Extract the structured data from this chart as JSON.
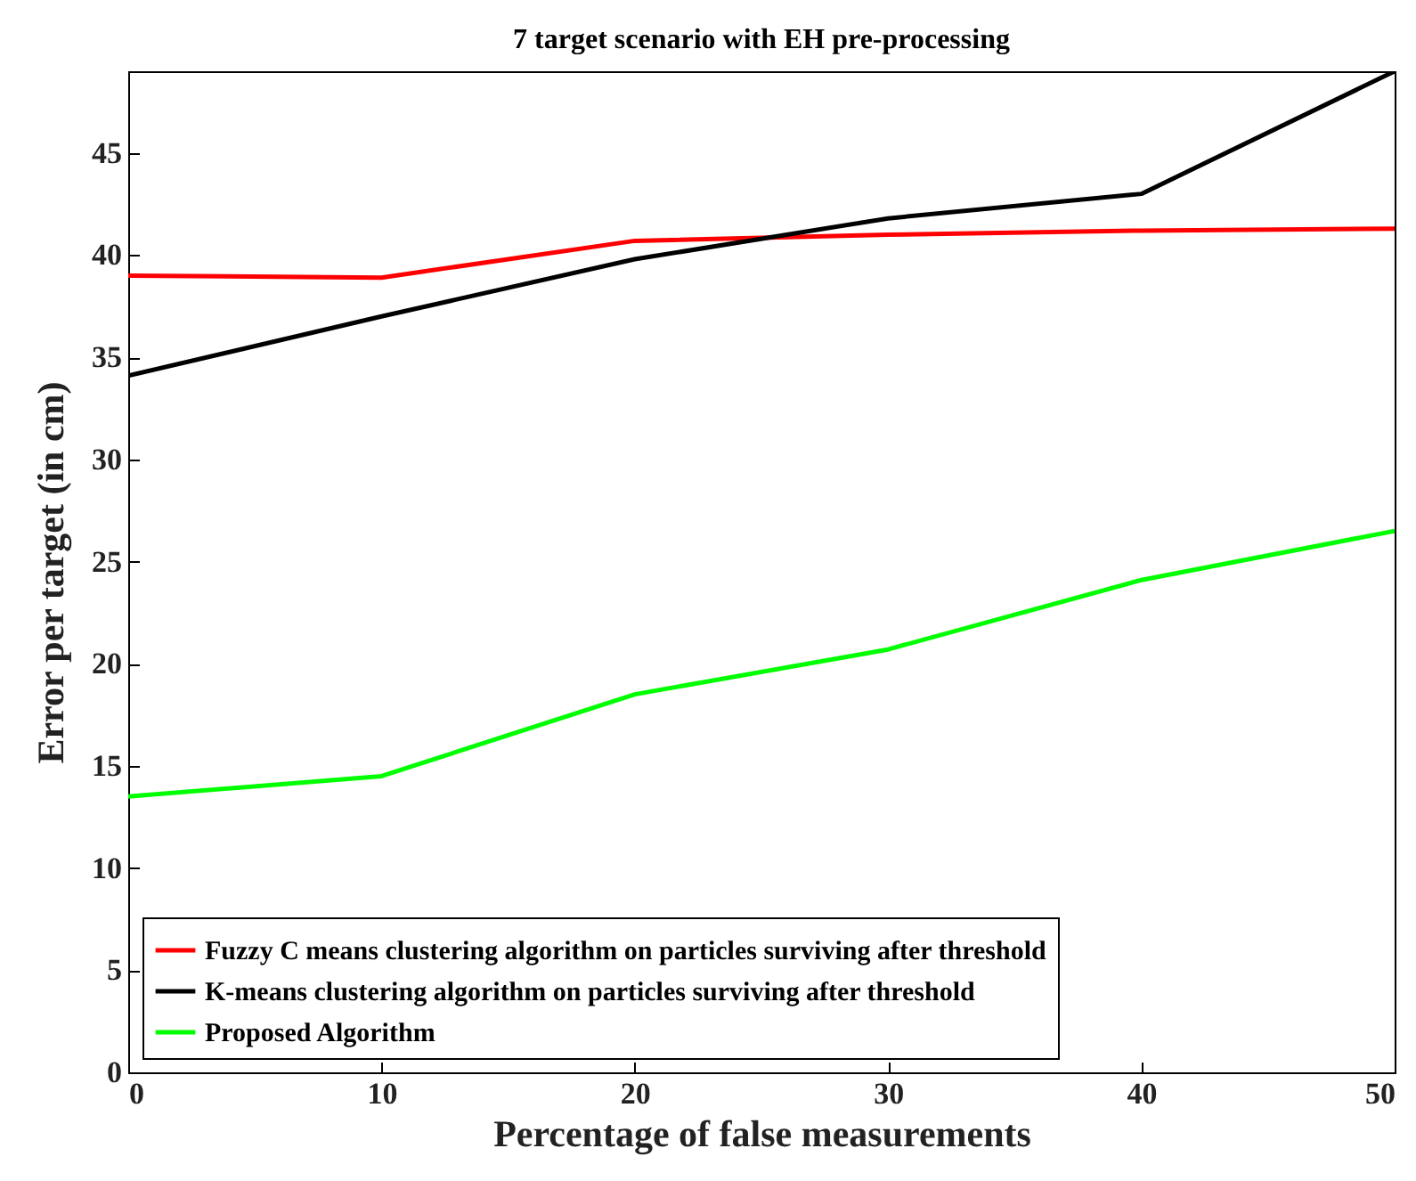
{
  "chart_data": {
    "type": "line",
    "title": "7 target scenario with EH pre-processing",
    "xlabel": "Percentage of false measurements",
    "ylabel": "Error per target (in cm)",
    "x": [
      0,
      10,
      20,
      30,
      40,
      50
    ],
    "series": [
      {
        "name": "Fuzzy C means clustering algorithm on particles surviving after threshold",
        "color": "#ff0000",
        "values": [
          39,
          38.9,
          40.7,
          41,
          41.2,
          41.3
        ]
      },
      {
        "name": "K-means clustering algorithm on particles surviving after threshold",
        "color": "#000000",
        "values": [
          34.1,
          37,
          39.8,
          41.8,
          43,
          49
        ]
      },
      {
        "name": "Proposed Algorithm",
        "color": "#00ff00",
        "values": [
          13.5,
          14.5,
          18.5,
          20.7,
          24.1,
          26.5
        ]
      }
    ],
    "xlim": [
      0,
      50
    ],
    "xticks": [
      0,
      10,
      20,
      30,
      40,
      50
    ],
    "ylim": [
      0,
      49
    ],
    "yticks": [
      0,
      5,
      10,
      15,
      20,
      25,
      30,
      35,
      40,
      45
    ],
    "grid": false,
    "legend": "bottom left",
    "marker": "none",
    "line_style": "solid"
  }
}
